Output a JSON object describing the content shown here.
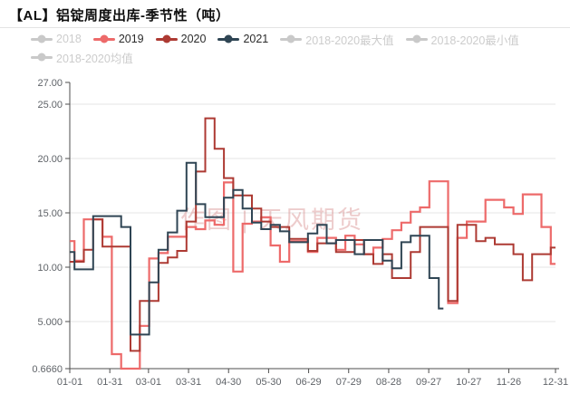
{
  "header": {
    "title": "【AL】铝锭周度出库-季节性（吨）"
  },
  "legend": {
    "items": [
      {
        "label": "2018",
        "color": "#c9c9c9",
        "enabled": false
      },
      {
        "label": "2019",
        "color": "#ed6a6a",
        "enabled": true
      },
      {
        "label": "2020",
        "color": "#ad3a33",
        "enabled": true
      },
      {
        "label": "2021",
        "color": "#2f4554",
        "enabled": true
      },
      {
        "label": "2018-2020最大值",
        "color": "#c9c9c9",
        "enabled": false
      },
      {
        "label": "2018-2020最小值",
        "color": "#c9c9c9",
        "enabled": false
      },
      {
        "label": "2018-2020均值",
        "color": "#c9c9c9",
        "enabled": false
      }
    ]
  },
  "watermark": {
    "text": "作图 | 天风期货"
  },
  "chart_data": {
    "type": "line",
    "step": "middle",
    "title": "【AL】铝锭周度出库-季节性（吨）",
    "xlabel": "",
    "ylabel": "",
    "ylim": [
      0.666,
      27
    ],
    "grid": "horizontal",
    "legend_position": "top-left",
    "x_unit": "weekly points, Jan 1 to Dec 31",
    "x_tick_labels": [
      "01-01",
      "01-31",
      "03-01",
      "03-31",
      "04-30",
      "05-30",
      "06-29",
      "07-29",
      "08-28",
      "09-27",
      "10-27",
      "11-26",
      "12-31"
    ],
    "x_tick_days": [
      0,
      30,
      59,
      89,
      119,
      149,
      179,
      209,
      239,
      269,
      299,
      329,
      364
    ],
    "y_tick_values": [
      27,
      25,
      20,
      15,
      10,
      5,
      0.666
    ],
    "y_tick_labels": [
      "27.00",
      "25.00",
      "20.00",
      "15.00",
      "10.00",
      "5.000",
      "0.6660"
    ],
    "days_per_point": 7,
    "series": [
      {
        "name": "2019",
        "color": "#ed6a6a",
        "width": 2.2,
        "values": [
          12.4,
          10.6,
          14.4,
          14.4,
          12.8,
          2.0,
          0.67,
          0.67,
          4.6,
          10.8,
          11.3,
          12.8,
          12.8,
          13.7,
          13.5,
          14.3,
          13.9,
          17.8,
          9.6,
          14.0,
          14.2,
          14.6,
          12.0,
          10.5,
          12.4,
          12.4,
          11.4,
          12.7,
          12.7,
          11.6,
          12.9,
          12.1,
          11.2,
          11.8,
          12.6,
          13.4,
          14.1,
          15.1,
          15.5,
          17.9,
          17.9,
          6.7,
          12.7,
          14.2,
          14.2,
          16.2,
          16.2,
          15.5,
          14.9,
          16.7,
          16.7,
          13.7,
          10.3
        ]
      },
      {
        "name": "2020",
        "color": "#ad3a33",
        "width": 2,
        "values": [
          10.5,
          10.5,
          11.6,
          14.4,
          11.9,
          11.9,
          11.9,
          2.3,
          6.9,
          6.9,
          10.4,
          10.9,
          11.5,
          14.2,
          18.8,
          23.7,
          20.9,
          18.2,
          16.6,
          16.6,
          15.4,
          14.2,
          13.7,
          13.7,
          12.6,
          12.6,
          11.5,
          12.2,
          12.2,
          11.4,
          11.4,
          12.5,
          11.2,
          10.3,
          11.2,
          9.0,
          9.0,
          11.4,
          13.7,
          13.7,
          13.7,
          6.9,
          13.9,
          13.9,
          12.4,
          12.7,
          12.1,
          12.1,
          11.2,
          8.8,
          11.2,
          11.2,
          11.8
        ]
      },
      {
        "name": "2021",
        "color": "#2f4554",
        "width": 2,
        "values": [
          11.4,
          9.8,
          9.8,
          14.7,
          14.7,
          14.7,
          13.7,
          3.8,
          3.8,
          8.6,
          11.6,
          13.2,
          15.2,
          19.6,
          15.8,
          14.6,
          14.6,
          16.4,
          17.1,
          15.4,
          14.1,
          13.5,
          13.9,
          13.3,
          12.3,
          12.3,
          13.1,
          13.9,
          12.2,
          12.5,
          12.5,
          11.2,
          12.5,
          12.5,
          10.6,
          9.9,
          12.3,
          12.9,
          12.9,
          9.0,
          6.2
        ]
      }
    ],
    "hidden_series": [
      "2018",
      "2018-2020最大值",
      "2018-2020最小值",
      "2018-2020均值"
    ]
  }
}
